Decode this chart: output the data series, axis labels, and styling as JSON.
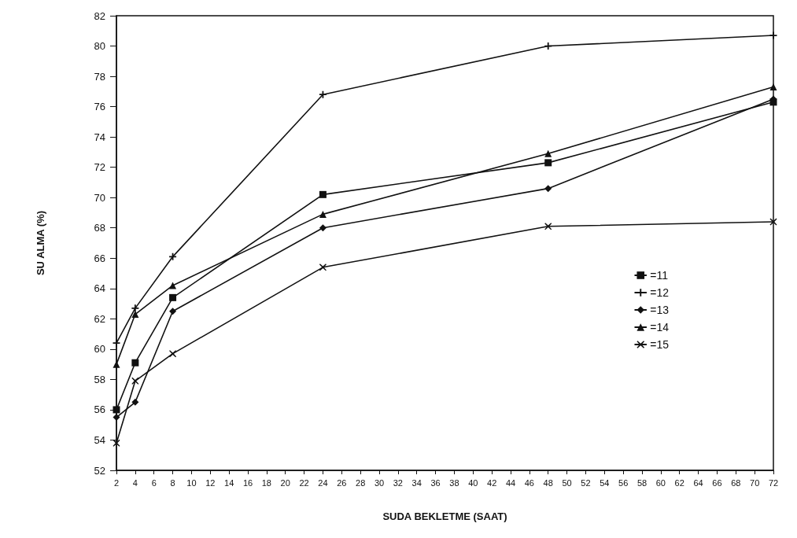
{
  "chart_data": {
    "type": "line",
    "xlabel": "SUDA BEKLETME (SAAT)",
    "ylabel": "SU ALMA (%)",
    "x": [
      2,
      4,
      8,
      24,
      48,
      72
    ],
    "series": [
      {
        "name": "=11",
        "color": "#111111",
        "marker": "square",
        "values": [
          56.0,
          59.1,
          63.4,
          70.2,
          72.3,
          76.3
        ]
      },
      {
        "name": "=12",
        "color": "#111111",
        "marker": "cross",
        "values": [
          60.4,
          62.7,
          66.1,
          76.8,
          80.0,
          80.7
        ]
      },
      {
        "name": "=13",
        "color": "#111111",
        "marker": "diamond",
        "values": [
          55.5,
          56.5,
          62.5,
          68.0,
          70.6,
          76.5
        ]
      },
      {
        "name": "=14",
        "color": "#111111",
        "marker": "triangle",
        "values": [
          59.0,
          62.3,
          64.2,
          68.9,
          72.9,
          77.3
        ]
      },
      {
        "name": "=15",
        "color": "#111111",
        "marker": "x",
        "values": [
          53.8,
          57.9,
          59.7,
          65.4,
          68.1,
          68.4
        ]
      }
    ],
    "xlim": [
      2,
      72
    ],
    "xticks": [
      2,
      4,
      6,
      8,
      10,
      12,
      14,
      16,
      18,
      20,
      22,
      24,
      26,
      28,
      30,
      32,
      34,
      36,
      38,
      40,
      42,
      44,
      46,
      48,
      50,
      52,
      54,
      56,
      58,
      60,
      62,
      64,
      66,
      68,
      70,
      72
    ],
    "ylim": [
      52,
      82
    ],
    "yticks": [
      52,
      54,
      56,
      58,
      60,
      62,
      64,
      66,
      68,
      70,
      72,
      74,
      76,
      78,
      80,
      82
    ],
    "grid": false,
    "legend": "right",
    "line_style": "solid"
  }
}
